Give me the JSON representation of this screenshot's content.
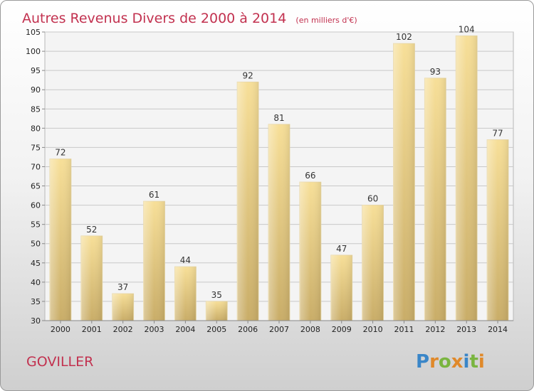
{
  "chart_data": {
    "type": "bar",
    "title": "Autres Revenus Divers de 2000 à 2014",
    "subtitle": "(en milliers d'€)",
    "categories": [
      "2000",
      "2001",
      "2002",
      "2003",
      "2004",
      "2005",
      "2006",
      "2007",
      "2008",
      "2009",
      "2010",
      "2011",
      "2012",
      "2013",
      "2014"
    ],
    "values": [
      72,
      52,
      37,
      61,
      44,
      35,
      92,
      81,
      66,
      47,
      60,
      102,
      93,
      104,
      77
    ],
    "ylim": [
      30,
      105
    ],
    "yticks": [
      30,
      35,
      40,
      45,
      50,
      55,
      60,
      65,
      70,
      75,
      80,
      85,
      90,
      95,
      100,
      105
    ],
    "grid": true,
    "bar_color": "#e8c97a"
  },
  "footer": {
    "commune": "GOVILLER",
    "logo_letters": [
      {
        "ch": "P",
        "color": "#3a86c8"
      },
      {
        "ch": "r",
        "color": "#e0892a"
      },
      {
        "ch": "o",
        "color": "#7ab540"
      },
      {
        "ch": "x",
        "color": "#e0892a"
      },
      {
        "ch": "i",
        "color": "#3a86c8"
      },
      {
        "ch": "t",
        "color": "#7ab540"
      },
      {
        "ch": "i",
        "color": "#e0892a"
      }
    ]
  }
}
